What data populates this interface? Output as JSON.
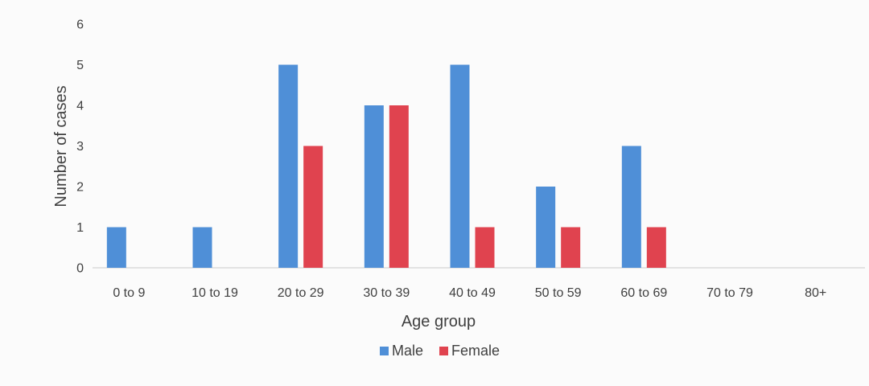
{
  "chart_data": {
    "type": "bar",
    "title": "",
    "xlabel": "Age group",
    "ylabel": "Number of cases",
    "categories": [
      "0 to 9",
      "10 to 19",
      "20 to 29",
      "30 to 39",
      "40 to 49",
      "50 to 59",
      "60 to 69",
      "70 to 79",
      "80+"
    ],
    "series": [
      {
        "name": "Male",
        "color": "#4f8fd7",
        "values": [
          1,
          1,
          5,
          4,
          5,
          2,
          3,
          0,
          0
        ]
      },
      {
        "name": "Female",
        "color": "#e0434f",
        "values": [
          0,
          0,
          3,
          4,
          1,
          1,
          1,
          0,
          0
        ]
      }
    ],
    "ylim": [
      0,
      6
    ],
    "yticks": [
      0,
      1,
      2,
      3,
      4,
      5,
      6
    ],
    "grid": false,
    "legend_position": "bottom"
  }
}
